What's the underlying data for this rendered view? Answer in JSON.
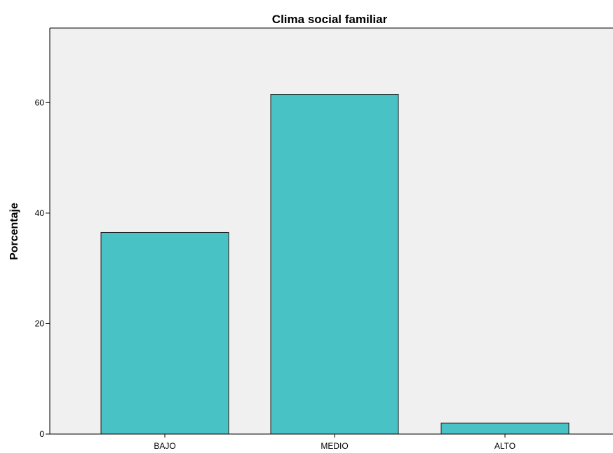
{
  "chart_data": {
    "type": "bar",
    "title": "Clima social familiar",
    "xlabel": "",
    "ylabel": "Porcentaje",
    "categories": [
      "BAJO",
      "MEDIO",
      "ALTO"
    ],
    "values": [
      36.5,
      61.5,
      2.0
    ],
    "ylim": [
      0,
      73.5
    ],
    "yticks": [
      0,
      20,
      40,
      60
    ],
    "grid": false,
    "legend": "none",
    "colors": {
      "bar_fill": "#48C2C5",
      "bar_stroke": "#1a1a1a",
      "plot_background": "#F0F0F0",
      "axis": "#000000"
    }
  }
}
